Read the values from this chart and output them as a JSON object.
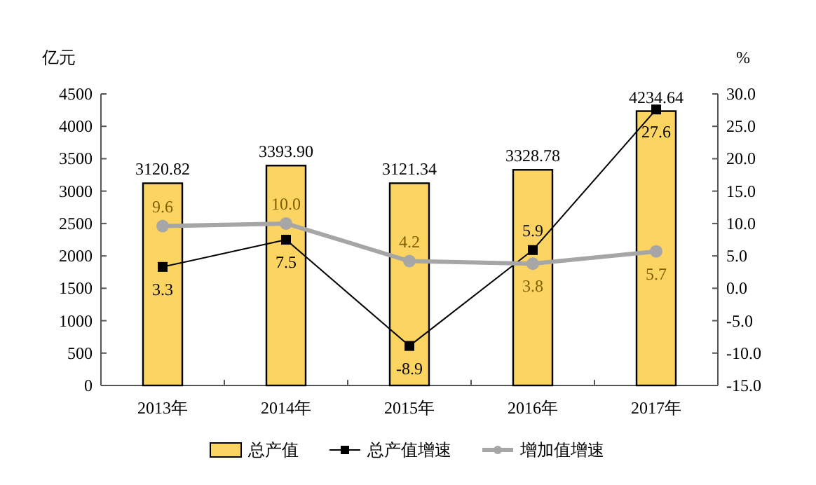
{
  "chart_data": {
    "type": "bar",
    "categories": [
      "2013年",
      "2014年",
      "2015年",
      "2016年",
      "2017年"
    ],
    "ylabel": "亿元",
    "y2label": "%",
    "ylim": [
      0,
      4500
    ],
    "yticks": [
      0,
      500,
      1000,
      1500,
      2000,
      2500,
      3000,
      3500,
      4000,
      4500
    ],
    "y2lim": [
      -15,
      30
    ],
    "y2ticks": [
      {
        "value": -15,
        "label": "-15.0"
      },
      {
        "value": -10,
        "label": "-10.0"
      },
      {
        "value": -5,
        "label": "-5.0"
      },
      {
        "value": 0,
        "label": "0.0"
      },
      {
        "value": 5,
        "label": "5.0"
      },
      {
        "value": 10,
        "label": "10.0"
      },
      {
        "value": 15,
        "label": "15.0"
      },
      {
        "value": 20,
        "label": "20.0"
      },
      {
        "value": 25,
        "label": "25.0"
      },
      {
        "value": 30,
        "label": "30.0"
      }
    ],
    "grid": false,
    "legend": "bottom",
    "series": [
      {
        "name": "总产值",
        "color": "#fcd462",
        "values": [
          3120.82,
          3393.9,
          3121.34,
          3328.78,
          4234.64
        ],
        "value_labels": [
          "3120.82",
          "3393.90",
          "3121.34",
          "3328.78",
          "4234.64"
        ]
      },
      {
        "name": "总产值增速",
        "type": "line",
        "axis": "y2",
        "color": "#000000",
        "marker": "square",
        "values": [
          3.3,
          7.5,
          -8.9,
          5.9,
          27.6
        ],
        "value_labels": [
          "3.3",
          "7.5",
          "-8.9",
          "5.9",
          "27.6"
        ]
      },
      {
        "name": "增加值增速",
        "type": "line",
        "axis": "y2",
        "color": "#a6a6a6",
        "marker": "circle",
        "values": [
          9.6,
          10.0,
          4.2,
          3.8,
          5.7
        ],
        "value_labels": [
          "9.6",
          "10.0",
          "4.2",
          "3.8",
          "5.7"
        ]
      }
    ]
  }
}
